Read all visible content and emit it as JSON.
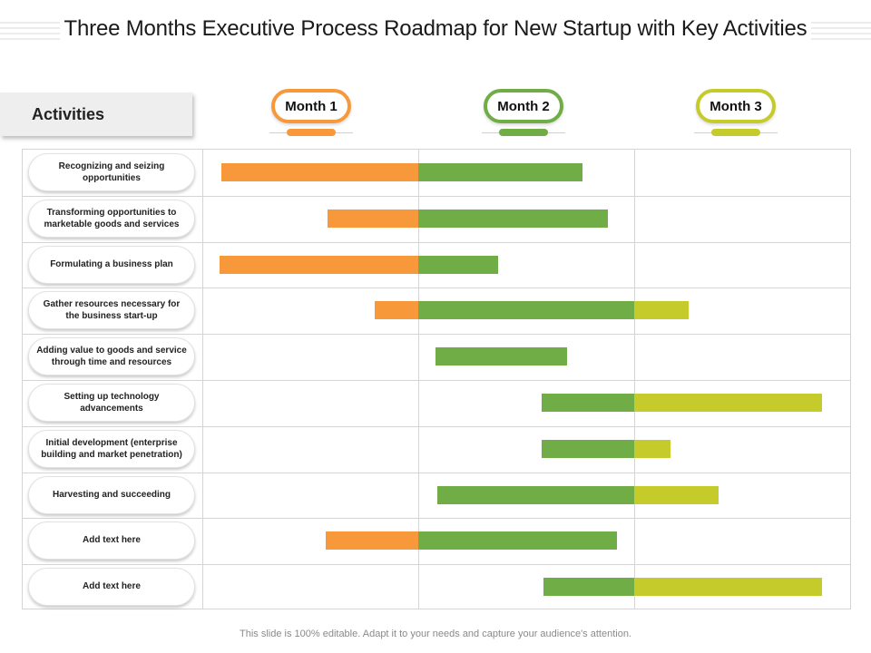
{
  "title": "Three Months Executive Process Roadmap for New Startup with Key Activities",
  "activities_header": "Activities",
  "colors": {
    "month1": "#f7993b",
    "month2": "#70ad47",
    "month3": "#c5cb2b"
  },
  "footer": "This slide is 100% editable. Adapt it to your needs and capture your audience's attention.",
  "chart_data": {
    "type": "gantt",
    "title": "Three Months Executive Process Roadmap for New Startup with Key Activities",
    "x_unit": "months",
    "xlim": [
      0,
      3
    ],
    "months": [
      "Month 1",
      "Month 2",
      "Month 3"
    ],
    "rows": [
      {
        "label": "Recognizing and seizing opportunities",
        "start": 0.09,
        "end": 1.76
      },
      {
        "label": "Transforming opportunities to marketable goods and services",
        "start": 0.58,
        "end": 1.88
      },
      {
        "label": "Formulating a business plan",
        "start": 0.08,
        "end": 1.37
      },
      {
        "label": "Gather resources necessary for the business start-up",
        "start": 0.8,
        "end": 2.25
      },
      {
        "label": "Adding value to goods and service through time and resources",
        "start": 1.08,
        "end": 1.69
      },
      {
        "label": "Setting up technology advancements",
        "start": 1.57,
        "end": 2.87
      },
      {
        "label": "Initial development (enterprise building and market penetration)",
        "start": 1.57,
        "end": 2.17
      },
      {
        "label": "Harvesting and succeeding",
        "start": 1.09,
        "end": 2.39
      },
      {
        "label": "Add text here",
        "start": 0.57,
        "end": 1.92
      },
      {
        "label": "Add text here",
        "start": 1.58,
        "end": 2.87
      }
    ]
  }
}
